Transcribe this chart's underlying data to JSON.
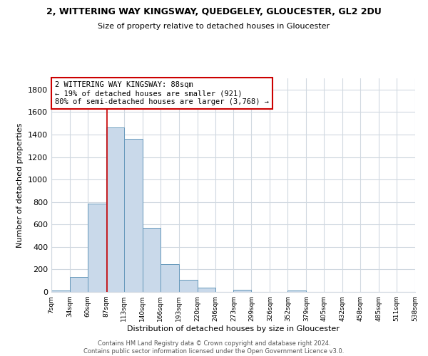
{
  "title": "2, WITTERING WAY KINGSWAY, QUEDGELEY, GLOUCESTER, GL2 2DU",
  "subtitle": "Size of property relative to detached houses in Gloucester",
  "xlabel": "Distribution of detached houses by size in Gloucester",
  "ylabel": "Number of detached properties",
  "bar_color": "#c9d9ea",
  "bar_edge_color": "#6699bb",
  "background_color": "#ffffff",
  "grid_color": "#d0d8e0",
  "bin_edges": [
    7,
    34,
    60,
    87,
    113,
    140,
    166,
    193,
    220,
    246,
    273,
    299,
    326,
    352,
    379,
    405,
    432,
    458,
    485,
    511,
    538
  ],
  "bin_labels": [
    "7sqm",
    "34sqm",
    "60sqm",
    "87sqm",
    "113sqm",
    "140sqm",
    "166sqm",
    "193sqm",
    "220sqm",
    "246sqm",
    "273sqm",
    "299sqm",
    "326sqm",
    "352sqm",
    "379sqm",
    "405sqm",
    "432sqm",
    "458sqm",
    "485sqm",
    "511sqm",
    "538sqm"
  ],
  "bar_heights": [
    15,
    135,
    785,
    1460,
    1360,
    570,
    250,
    110,
    35,
    0,
    20,
    0,
    0,
    10,
    0,
    0,
    0,
    0,
    0,
    0
  ],
  "property_line_x": 88,
  "property_line_color": "#cc0000",
  "annotation_title": "2 WITTERING WAY KINGSWAY: 88sqm",
  "annotation_line1": "← 19% of detached houses are smaller (921)",
  "annotation_line2": "80% of semi-detached houses are larger (3,768) →",
  "annotation_box_color": "#ffffff",
  "annotation_box_edge": "#cc0000",
  "ylim": [
    0,
    1900
  ],
  "yticks": [
    0,
    200,
    400,
    600,
    800,
    1000,
    1200,
    1400,
    1600,
    1800
  ],
  "footer1": "Contains HM Land Registry data © Crown copyright and database right 2024.",
  "footer2": "Contains public sector information licensed under the Open Government Licence v3.0."
}
